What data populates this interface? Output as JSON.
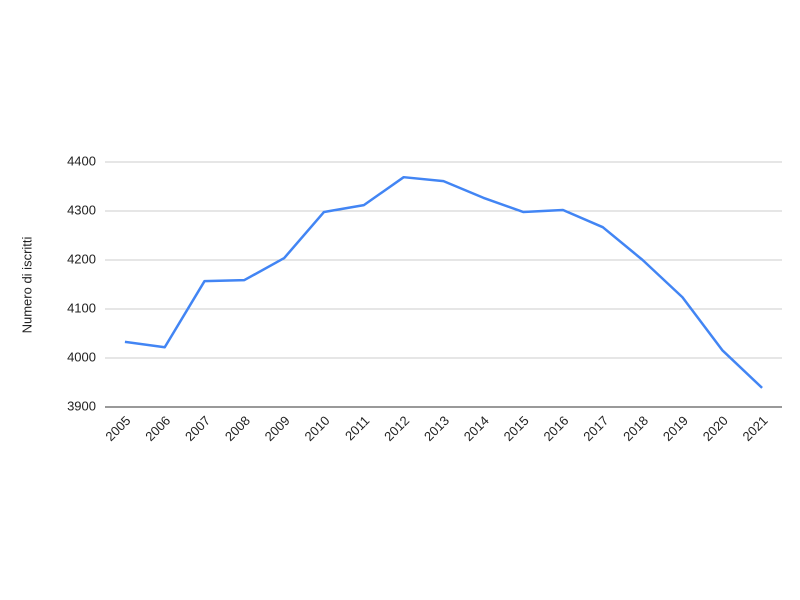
{
  "chart_data": {
    "type": "line",
    "y_label": "Numero di iscritti",
    "categories": [
      "2005",
      "2006",
      "2007",
      "2008",
      "2009",
      "2010",
      "2011",
      "2012",
      "2013",
      "2014",
      "2015",
      "2016",
      "2017",
      "2018",
      "2019",
      "2020",
      "2021"
    ],
    "series": [
      {
        "name": "Numero di iscritti",
        "color": "#4285f4",
        "values": [
          4033,
          4022,
          4157,
          4159,
          4204,
          4298,
          4312,
          4369,
          4361,
          4327,
          4298,
          4302,
          4267,
          4200,
          4124,
          4016,
          3939
        ]
      }
    ],
    "ylim": [
      3900,
      4400
    ],
    "yticks": [
      3900,
      4000,
      4100,
      4200,
      4300,
      4400
    ],
    "grid": true
  }
}
